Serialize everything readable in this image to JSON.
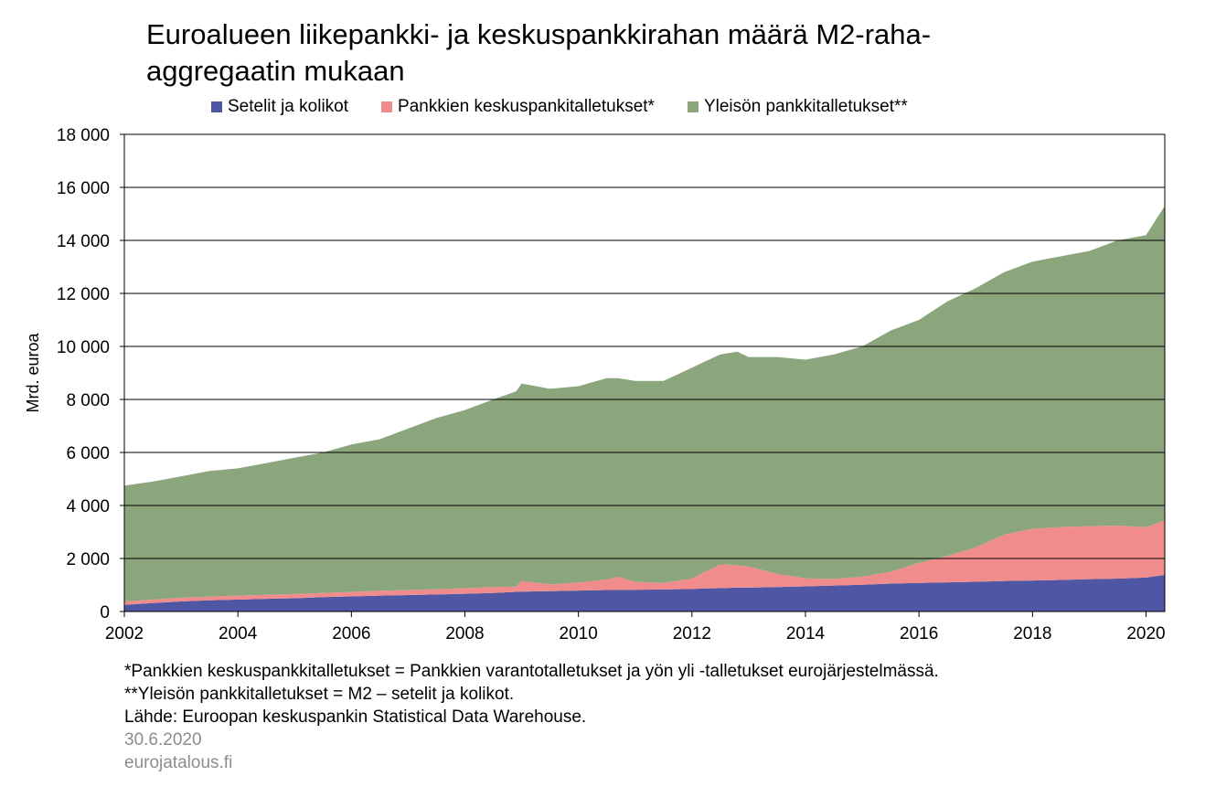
{
  "title_line1": "Euroalueen liikepankki- ja keskuspankkirahan määrä M2-raha-",
  "title_line2": "aggregaatin mukaan",
  "legend": [
    {
      "label": "Setelit ja kolikot",
      "color": "#4f56a3"
    },
    {
      "label": "Pankkien keskuspankitalletukset*",
      "color": "#f08c8c"
    },
    {
      "label": "Yleisön pankkitalletukset**",
      "color": "#8ba57c"
    }
  ],
  "notes": {
    "note1": "*Pankkien keskuspankkitalletukset = Pankkien varantotalletukset ja yön yli -talletukset eurojärjestelmässä.",
    "note2": "**Yleisön pankkitalletukset = M2 – setelit ja kolikot.",
    "source": "Lähde: Euroopan keskuspankin Statistical Data Warehouse.",
    "date": "30.6.2020",
    "site": "eurojatalous.fi"
  },
  "chart_data": {
    "type": "area",
    "stacked": true,
    "ylabel": "Mrd. euroa",
    "ylim": [
      0,
      18000
    ],
    "xlim": [
      2002,
      2020.33
    ],
    "yticks": [
      0,
      2000,
      4000,
      6000,
      8000,
      10000,
      12000,
      14000,
      16000,
      18000
    ],
    "ytick_labels": [
      "0",
      "2 000",
      "4 000",
      "6 000",
      "8 000",
      "10 000",
      "12 000",
      "14 000",
      "16 000",
      "18 000"
    ],
    "xticks": [
      2002,
      2004,
      2006,
      2008,
      2010,
      2012,
      2014,
      2016,
      2018,
      2020
    ],
    "xtick_labels": [
      "2002",
      "2004",
      "2006",
      "2008",
      "2010",
      "2012",
      "2014",
      "2016",
      "2018",
      "2020"
    ],
    "grid": "horizontal",
    "legend_position": "top",
    "x": [
      2002,
      2002.5,
      2003,
      2003.5,
      2004,
      2004.5,
      2005,
      2005.5,
      2006,
      2006.5,
      2007,
      2007.5,
      2008,
      2008.5,
      2008.9,
      2009,
      2009.5,
      2010,
      2010.5,
      2010.7,
      2011,
      2011.5,
      2012,
      2012.2,
      2012.5,
      2012.8,
      2013,
      2013.5,
      2014,
      2014.5,
      2015,
      2015.5,
      2016,
      2016.5,
      2017,
      2017.5,
      2018,
      2018.5,
      2019,
      2019.5,
      2020,
      2020.33
    ],
    "series": [
      {
        "name": "Setelit ja kolikot",
        "values": [
          250,
          320,
          380,
          420,
          450,
          480,
          500,
          540,
          570,
          600,
          620,
          640,
          670,
          700,
          740,
          750,
          770,
          790,
          810,
          810,
          820,
          830,
          850,
          870,
          880,
          900,
          900,
          920,
          950,
          980,
          1010,
          1050,
          1080,
          1100,
          1120,
          1150,
          1170,
          1190,
          1220,
          1240,
          1280,
          1380
        ]
      },
      {
        "name": "Pankkien keskuspankitalletukset*",
        "values": [
          130,
          130,
          140,
          140,
          150,
          150,
          160,
          160,
          170,
          180,
          190,
          200,
          210,
          220,
          200,
          400,
          250,
          300,
          400,
          500,
          300,
          250,
          400,
          600,
          900,
          850,
          800,
          500,
          300,
          250,
          300,
          450,
          750,
          1000,
          1300,
          1750,
          1950,
          2000,
          2000,
          2000,
          1900,
          2050
        ]
      },
      {
        "name": "Yleisön pankkitalletukset**",
        "values": [
          4370,
          4450,
          4580,
          4740,
          4800,
          4970,
          5140,
          5300,
          5560,
          5720,
          6090,
          6460,
          6720,
          7080,
          7360,
          7450,
          7380,
          7410,
          7590,
          7490,
          7580,
          7620,
          7950,
          7930,
          7920,
          8050,
          7900,
          8180,
          8250,
          8470,
          8690,
          9100,
          9170,
          9600,
          9780,
          9900,
          10080,
          10210,
          10380,
          10760,
          11020,
          11870
        ]
      }
    ]
  }
}
